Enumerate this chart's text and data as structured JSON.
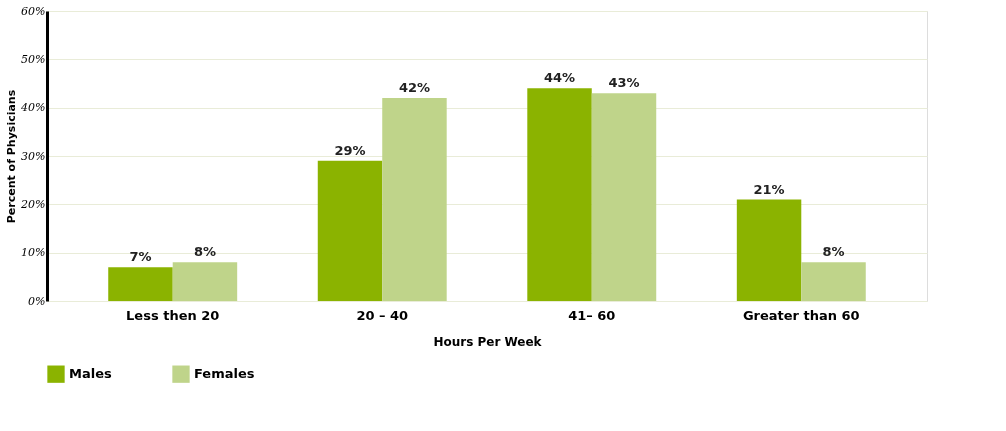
{
  "chart_data": {
    "type": "bar",
    "xlabel": "Hours Per Week",
    "ylabel": "Percent of Physicians",
    "categories": [
      "Less then 20",
      "20 – 40",
      "41– 60",
      "Greater than 60"
    ],
    "series": [
      {
        "name": "Males",
        "color": "#8bb300",
        "values": [
          7,
          29,
          44,
          21
        ]
      },
      {
        "name": "Females",
        "color": "#bfd48a",
        "values": [
          8,
          42,
          43,
          8
        ]
      }
    ],
    "value_labels": [
      [
        "7%",
        "29%",
        "44%",
        "21%"
      ],
      [
        "8%",
        "42%",
        "43%",
        "8%"
      ]
    ],
    "ylim": [
      0,
      60
    ],
    "yticks": [
      {
        "value": 0,
        "label": "0%"
      },
      {
        "value": 10,
        "label": "10%"
      },
      {
        "value": 20,
        "label": "20%"
      },
      {
        "value": 30,
        "label": "30%"
      },
      {
        "value": 40,
        "label": "40%"
      },
      {
        "value": 50,
        "label": "50%"
      },
      {
        "value": 60,
        "label": "60%"
      }
    ],
    "grid": "y",
    "legend": "bottom left"
  }
}
